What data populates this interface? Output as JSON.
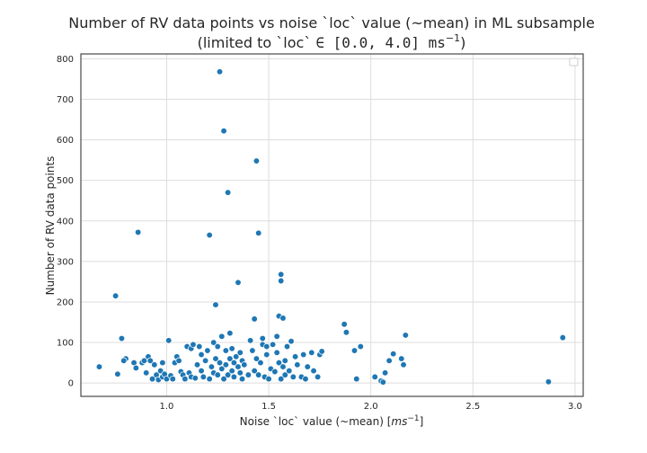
{
  "chart_data": {
    "type": "scatter",
    "title_line1": "Number of RV data points vs noise `loc` value (~mean) in ML subsample",
    "title_line2_prefix": "(limited to `loc` ",
    "title_line2_math": "∈ [0.0, 4.0] ms",
    "title_line2_sup": "−1",
    "title_line2_suffix": ")",
    "xlabel_prefix": "Noise `loc` value (~mean) [",
    "xlabel_math": "ms",
    "xlabel_sup": "−1",
    "xlabel_suffix": "]",
    "ylabel": "Number of RV data points",
    "xlim": [
      0.58,
      3.04
    ],
    "ylim": [
      -33,
      812
    ],
    "xticks": [
      "1.0",
      "1.5",
      "2.0",
      "2.5",
      "3.0"
    ],
    "xtick_values": [
      1.0,
      1.5,
      2.0,
      2.5,
      3.0
    ],
    "yticks": [
      "0",
      "100",
      "200",
      "300",
      "400",
      "500",
      "600",
      "700",
      "800"
    ],
    "ytick_values": [
      0,
      100,
      200,
      300,
      400,
      500,
      600,
      700,
      800
    ],
    "grid": true,
    "legend": "top-right (empty)",
    "marker_color": "#1f77b4",
    "points": [
      [
        0.67,
        40
      ],
      [
        0.75,
        215
      ],
      [
        0.76,
        22
      ],
      [
        0.78,
        110
      ],
      [
        0.8,
        60
      ],
      [
        0.79,
        55
      ],
      [
        0.84,
        50
      ],
      [
        0.85,
        37
      ],
      [
        0.86,
        372
      ],
      [
        0.88,
        50
      ],
      [
        0.89,
        55
      ],
      [
        0.9,
        25
      ],
      [
        0.91,
        65
      ],
      [
        0.92,
        55
      ],
      [
        0.93,
        10
      ],
      [
        0.94,
        45
      ],
      [
        0.95,
        20
      ],
      [
        0.96,
        8
      ],
      [
        0.97,
        30
      ],
      [
        0.98,
        15
      ],
      [
        0.98,
        50
      ],
      [
        0.99,
        22
      ],
      [
        1.0,
        10
      ],
      [
        1.01,
        105
      ],
      [
        1.02,
        18
      ],
      [
        1.03,
        10
      ],
      [
        1.04,
        50
      ],
      [
        1.05,
        65
      ],
      [
        1.06,
        55
      ],
      [
        1.07,
        28
      ],
      [
        1.08,
        20
      ],
      [
        1.09,
        10
      ],
      [
        1.1,
        90
      ],
      [
        1.11,
        25
      ],
      [
        1.12,
        85
      ],
      [
        1.12,
        15
      ],
      [
        1.13,
        95
      ],
      [
        1.14,
        12
      ],
      [
        1.15,
        45
      ],
      [
        1.16,
        90
      ],
      [
        1.17,
        70
      ],
      [
        1.17,
        30
      ],
      [
        1.18,
        15
      ],
      [
        1.19,
        55
      ],
      [
        1.2,
        80
      ],
      [
        1.21,
        365
      ],
      [
        1.21,
        10
      ],
      [
        1.22,
        40
      ],
      [
        1.23,
        100
      ],
      [
        1.23,
        25
      ],
      [
        1.24,
        193
      ],
      [
        1.24,
        60
      ],
      [
        1.25,
        90
      ],
      [
        1.25,
        20
      ],
      [
        1.26,
        768
      ],
      [
        1.26,
        50
      ],
      [
        1.27,
        115
      ],
      [
        1.27,
        35
      ],
      [
        1.28,
        622
      ],
      [
        1.28,
        10
      ],
      [
        1.29,
        80
      ],
      [
        1.29,
        45
      ],
      [
        1.3,
        470
      ],
      [
        1.3,
        20
      ],
      [
        1.31,
        123
      ],
      [
        1.31,
        60
      ],
      [
        1.32,
        85
      ],
      [
        1.32,
        30
      ],
      [
        1.33,
        50
      ],
      [
        1.33,
        15
      ],
      [
        1.34,
        65
      ],
      [
        1.35,
        248
      ],
      [
        1.35,
        40
      ],
      [
        1.36,
        75
      ],
      [
        1.36,
        25
      ],
      [
        1.37,
        55
      ],
      [
        1.37,
        10
      ],
      [
        1.38,
        45
      ],
      [
        1.4,
        20
      ],
      [
        1.41,
        105
      ],
      [
        1.42,
        80
      ],
      [
        1.43,
        158
      ],
      [
        1.43,
        30
      ],
      [
        1.44,
        548
      ],
      [
        1.44,
        60
      ],
      [
        1.45,
        370
      ],
      [
        1.45,
        20
      ],
      [
        1.46,
        50
      ],
      [
        1.47,
        110
      ],
      [
        1.47,
        95
      ],
      [
        1.48,
        15
      ],
      [
        1.49,
        70
      ],
      [
        1.49,
        90
      ],
      [
        1.5,
        10
      ],
      [
        1.51,
        35
      ],
      [
        1.52,
        95
      ],
      [
        1.53,
        28
      ],
      [
        1.54,
        115
      ],
      [
        1.54,
        75
      ],
      [
        1.55,
        165
      ],
      [
        1.55,
        50
      ],
      [
        1.56,
        268
      ],
      [
        1.56,
        252
      ],
      [
        1.56,
        10
      ],
      [
        1.57,
        160
      ],
      [
        1.57,
        40
      ],
      [
        1.58,
        55
      ],
      [
        1.58,
        20
      ],
      [
        1.59,
        90
      ],
      [
        1.6,
        30
      ],
      [
        1.61,
        103
      ],
      [
        1.62,
        15
      ],
      [
        1.63,
        65
      ],
      [
        1.64,
        45
      ],
      [
        1.66,
        15
      ],
      [
        1.67,
        70
      ],
      [
        1.68,
        10
      ],
      [
        1.69,
        40
      ],
      [
        1.71,
        75
      ],
      [
        1.72,
        30
      ],
      [
        1.74,
        15
      ],
      [
        1.75,
        70
      ],
      [
        1.76,
        78
      ],
      [
        1.87,
        145
      ],
      [
        1.88,
        125
      ],
      [
        1.92,
        80
      ],
      [
        1.93,
        10
      ],
      [
        1.95,
        90
      ],
      [
        2.02,
        15
      ],
      [
        2.05,
        5
      ],
      [
        2.06,
        2
      ],
      [
        2.07,
        25
      ],
      [
        2.09,
        55
      ],
      [
        2.11,
        72
      ],
      [
        2.15,
        60
      ],
      [
        2.16,
        45
      ],
      [
        2.17,
        118
      ],
      [
        2.87,
        3
      ],
      [
        2.94,
        112
      ]
    ]
  }
}
